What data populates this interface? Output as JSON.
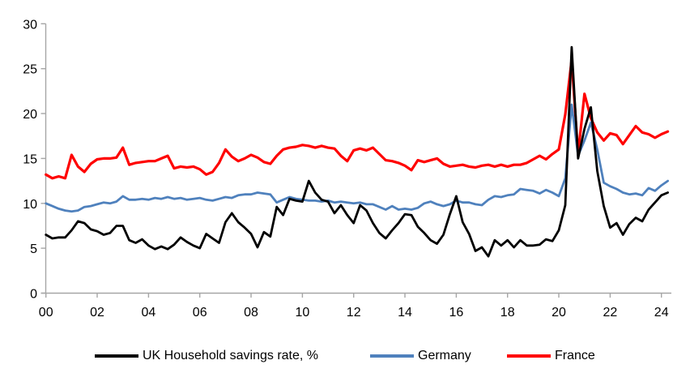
{
  "chart_data": {
    "type": "line",
    "title": "",
    "x_axis": {
      "tick_labels": [
        "00",
        "02",
        "04",
        "06",
        "08",
        "10",
        "12",
        "14",
        "16",
        "18",
        "20",
        "22",
        "24"
      ],
      "start": "2000 Q1",
      "end": "2024 Q2",
      "frequency": "quarterly"
    },
    "y_axis": {
      "ticks": [
        0,
        5,
        10,
        15,
        20,
        25,
        30
      ],
      "range": [
        0,
        30
      ]
    },
    "grid": false,
    "legend_position": "bottom",
    "colors": {
      "axis": "#a6a6a6",
      "text": "#000000",
      "background": "#ffffff"
    },
    "series": [
      {
        "name": "UK Household savings rate, %",
        "color": "#000000",
        "values": [
          6.5,
          6.1,
          6.2,
          6.2,
          7.0,
          8.0,
          7.8,
          7.1,
          6.9,
          6.5,
          6.7,
          7.5,
          7.5,
          5.9,
          5.6,
          6.0,
          5.3,
          4.9,
          5.2,
          4.9,
          5.4,
          6.2,
          5.7,
          5.3,
          5.0,
          6.6,
          6.1,
          5.6,
          7.9,
          8.9,
          7.9,
          7.3,
          6.6,
          5.1,
          6.8,
          6.3,
          9.6,
          8.7,
          10.5,
          10.3,
          10.2,
          12.5,
          11.2,
          10.4,
          10.2,
          8.9,
          9.8,
          8.7,
          7.8,
          9.8,
          9.2,
          7.8,
          6.7,
          6.1,
          7.0,
          7.8,
          8.8,
          8.7,
          7.4,
          6.7,
          5.9,
          5.5,
          6.5,
          8.8,
          10.8,
          7.9,
          6.6,
          4.7,
          5.1,
          4.1,
          5.9,
          5.3,
          5.9,
          5.1,
          5.9,
          5.3,
          5.3,
          5.4,
          6.0,
          5.8,
          7.0,
          9.8,
          27.4,
          15.0,
          18.3,
          20.7,
          13.6,
          9.7,
          7.3,
          7.8,
          6.5,
          7.7,
          8.4,
          8.0,
          9.3,
          10.1,
          10.9,
          11.2
        ]
      },
      {
        "name": "Germany",
        "color": "#4f81bd",
        "values": [
          10.0,
          9.7,
          9.4,
          9.2,
          9.1,
          9.2,
          9.6,
          9.7,
          9.9,
          10.1,
          10.0,
          10.2,
          10.8,
          10.4,
          10.4,
          10.5,
          10.4,
          10.6,
          10.5,
          10.7,
          10.5,
          10.6,
          10.4,
          10.5,
          10.6,
          10.4,
          10.3,
          10.5,
          10.7,
          10.6,
          10.9,
          11.0,
          11.0,
          11.2,
          11.1,
          11.0,
          10.1,
          10.4,
          10.7,
          10.5,
          10.4,
          10.3,
          10.3,
          10.2,
          10.3,
          10.1,
          10.2,
          10.1,
          10.0,
          10.1,
          9.9,
          9.9,
          9.6,
          9.3,
          9.7,
          9.3,
          9.4,
          9.3,
          9.5,
          10.0,
          10.2,
          9.9,
          9.7,
          9.9,
          10.3,
          10.1,
          10.1,
          9.9,
          9.8,
          10.4,
          10.8,
          10.7,
          10.9,
          11.0,
          11.6,
          11.5,
          11.4,
          11.1,
          11.5,
          11.2,
          10.8,
          12.8,
          21.0,
          15.3,
          17.0,
          19.0,
          16.0,
          12.3,
          11.9,
          11.6,
          11.2,
          11.0,
          11.1,
          10.9,
          11.7,
          11.4,
          12.0,
          12.5
        ]
      },
      {
        "name": "France",
        "color": "#ff0000",
        "values": [
          13.2,
          12.8,
          13.0,
          12.8,
          15.4,
          14.1,
          13.5,
          14.4,
          14.9,
          15.0,
          15.0,
          15.1,
          16.2,
          14.3,
          14.5,
          14.6,
          14.7,
          14.7,
          15.0,
          15.3,
          13.9,
          14.1,
          14.0,
          14.1,
          13.8,
          13.2,
          13.5,
          14.5,
          16.0,
          15.2,
          14.7,
          15.0,
          15.4,
          15.1,
          14.6,
          14.4,
          15.3,
          16.0,
          16.2,
          16.3,
          16.5,
          16.4,
          16.2,
          16.4,
          16.2,
          16.1,
          15.3,
          14.7,
          15.9,
          16.1,
          15.9,
          16.2,
          15.5,
          14.8,
          14.7,
          14.5,
          14.2,
          13.7,
          14.8,
          14.6,
          14.8,
          15.0,
          14.4,
          14.1,
          14.2,
          14.3,
          14.1,
          14.0,
          14.2,
          14.3,
          14.1,
          14.3,
          14.1,
          14.3,
          14.3,
          14.5,
          14.9,
          15.3,
          14.9,
          15.5,
          16.0,
          19.9,
          26.0,
          15.5,
          22.2,
          19.5,
          17.9,
          17.0,
          17.8,
          17.6,
          16.6,
          17.6,
          18.6,
          17.9,
          17.7,
          17.3,
          17.7,
          18.0
        ]
      }
    ]
  }
}
